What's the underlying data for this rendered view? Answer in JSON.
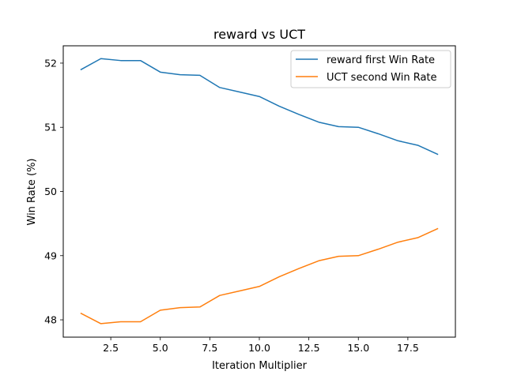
{
  "chart_data": {
    "type": "line",
    "title": "reward vs UCT",
    "xlabel": "Iteration Multiplier",
    "ylabel": "Win Rate (%)",
    "xlim": [
      0.1,
      19.9
    ],
    "ylim": [
      47.73,
      52.27
    ],
    "xticks": [
      2.5,
      5.0,
      7.5,
      10.0,
      12.5,
      15.0,
      17.5
    ],
    "xtick_labels": [
      "2.5",
      "5.0",
      "7.5",
      "10.0",
      "12.5",
      "15.0",
      "17.5"
    ],
    "yticks": [
      48,
      49,
      50,
      51,
      52
    ],
    "ytick_labels": [
      "48",
      "49",
      "50",
      "51",
      "52"
    ],
    "grid": false,
    "legend_position": "top-right",
    "x": [
      1,
      2,
      3,
      4,
      5,
      6,
      7,
      8,
      9,
      10,
      11,
      12,
      13,
      14,
      15,
      16,
      17,
      18,
      19
    ],
    "series": [
      {
        "name": "reward first Win Rate",
        "color": "#1f77b4",
        "values": [
          51.9,
          52.07,
          52.04,
          52.04,
          51.86,
          51.82,
          51.81,
          51.62,
          51.55,
          51.48,
          51.33,
          51.2,
          51.08,
          51.01,
          51.0,
          50.9,
          50.79,
          50.72,
          50.58
        ]
      },
      {
        "name": "UCT second Win Rate",
        "color": "#ff7f0e",
        "values": [
          48.1,
          47.94,
          47.97,
          47.97,
          48.15,
          48.19,
          48.2,
          48.38,
          48.45,
          48.52,
          48.67,
          48.8,
          48.92,
          48.99,
          49.0,
          49.1,
          49.21,
          49.28,
          49.42
        ]
      }
    ]
  }
}
